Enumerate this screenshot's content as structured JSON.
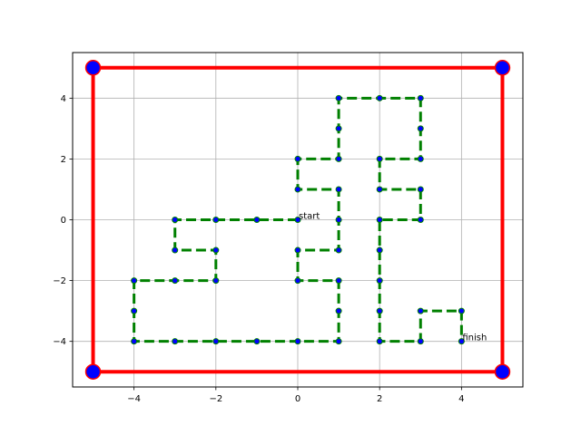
{
  "chart_data": {
    "type": "line",
    "title": "",
    "xlabel": "",
    "ylabel": "",
    "xlim": [
      -5.5,
      5.5
    ],
    "ylim": [
      -5.5,
      5.5
    ],
    "grid": true,
    "x_ticks": [
      -4,
      -2,
      0,
      2,
      4
    ],
    "y_ticks": [
      -4,
      -2,
      0,
      2,
      4
    ],
    "x_tick_labels": [
      "−4",
      "−2",
      "0",
      "2",
      "4"
    ],
    "y_tick_labels": [
      "−4",
      "−2",
      "0",
      "2",
      "4"
    ],
    "boundary": {
      "color": "#ff0000",
      "vertex_color": "#0000ff",
      "points": [
        [
          -5,
          5
        ],
        [
          5,
          5
        ],
        [
          5,
          -5
        ],
        [
          -5,
          -5
        ],
        [
          -5,
          5
        ]
      ]
    },
    "path": {
      "line_color": "#008000",
      "marker_color": "#0000ff",
      "style": "dashed",
      "points": [
        [
          0,
          0
        ],
        [
          -1,
          0
        ],
        [
          -2,
          0
        ],
        [
          -3,
          0
        ],
        [
          -3,
          -1
        ],
        [
          -2,
          -1
        ],
        [
          -2,
          -2
        ],
        [
          -3,
          -2
        ],
        [
          -4,
          -2
        ],
        [
          -4,
          -3
        ],
        [
          -4,
          -4
        ],
        [
          -3,
          -4
        ],
        [
          -2,
          -4
        ],
        [
          -1,
          -4
        ],
        [
          0,
          -4
        ],
        [
          1,
          -4
        ],
        [
          1,
          -3
        ],
        [
          1,
          -2
        ],
        [
          0,
          -2
        ],
        [
          0,
          -1
        ],
        [
          1,
          -1
        ],
        [
          1,
          0
        ],
        [
          1,
          1
        ],
        [
          0,
          1
        ],
        [
          0,
          2
        ],
        [
          1,
          2
        ],
        [
          1,
          3
        ],
        [
          1,
          4
        ],
        [
          2,
          4
        ],
        [
          3,
          4
        ],
        [
          3,
          3
        ],
        [
          3,
          2
        ],
        [
          2,
          2
        ],
        [
          2,
          1
        ],
        [
          3,
          1
        ],
        [
          3,
          0
        ],
        [
          2,
          0
        ],
        [
          2,
          -1
        ],
        [
          2,
          -2
        ],
        [
          2,
          -3
        ],
        [
          2,
          -4
        ],
        [
          3,
          -4
        ],
        [
          3,
          -3
        ],
        [
          4,
          -3
        ],
        [
          4,
          -4
        ]
      ]
    },
    "annotations": [
      {
        "text": "start",
        "x": 0,
        "y": 0
      },
      {
        "text": "finish",
        "x": 4,
        "y": -4
      }
    ]
  }
}
